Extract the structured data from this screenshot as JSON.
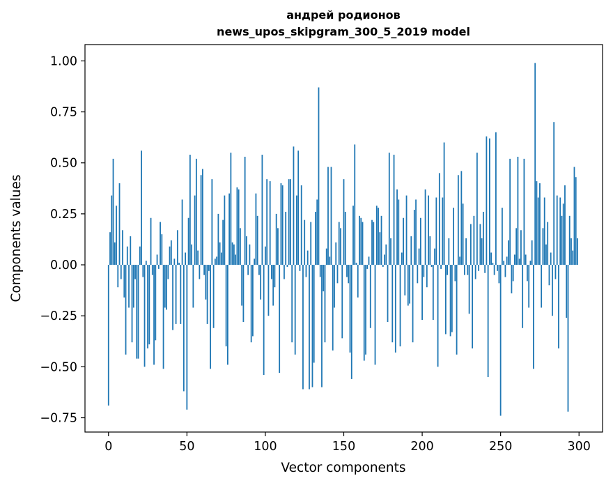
{
  "colors": {
    "bar": "#1f77b4",
    "axis": "#000000",
    "background": "#ffffff"
  },
  "chart_data": {
    "type": "bar",
    "title": "андрей родионов",
    "subtitle": "news_upos_skipgram_300_5_2019 model",
    "xlabel": "Vector components",
    "ylabel": "Components values",
    "xlim": [
      -15,
      315
    ],
    "ylim": [
      -0.82,
      1.08
    ],
    "grid": false,
    "legend": "none",
    "x_ticks": [
      0,
      50,
      100,
      150,
      200,
      250,
      300
    ],
    "y_ticks": [
      -0.75,
      -0.5,
      -0.25,
      0.0,
      0.25,
      0.5,
      0.75,
      1.0
    ],
    "x_tick_labels": [
      "0",
      "50",
      "100",
      "150",
      "200",
      "250",
      "300"
    ],
    "y_tick_labels": [
      "−0.75",
      "−0.50",
      "−0.25",
      "0.00",
      "0.25",
      "0.50",
      "0.75",
      "1.00"
    ],
    "x": [
      0,
      1,
      2,
      3,
      4,
      5,
      6,
      7,
      8,
      9,
      10,
      11,
      12,
      13,
      14,
      15,
      16,
      17,
      18,
      19,
      20,
      21,
      22,
      23,
      24,
      25,
      26,
      27,
      28,
      29,
      30,
      31,
      32,
      33,
      34,
      35,
      36,
      37,
      38,
      39,
      40,
      41,
      42,
      43,
      44,
      45,
      46,
      47,
      48,
      49,
      50,
      51,
      52,
      53,
      54,
      55,
      56,
      57,
      58,
      59,
      60,
      61,
      62,
      63,
      64,
      65,
      66,
      67,
      68,
      69,
      70,
      71,
      72,
      73,
      74,
      75,
      76,
      77,
      78,
      79,
      80,
      81,
      82,
      83,
      84,
      85,
      86,
      87,
      88,
      89,
      90,
      91,
      92,
      93,
      94,
      95,
      96,
      97,
      98,
      99,
      100,
      101,
      102,
      103,
      104,
      105,
      106,
      107,
      108,
      109,
      110,
      111,
      112,
      113,
      114,
      115,
      116,
      117,
      118,
      119,
      120,
      121,
      122,
      123,
      124,
      125,
      126,
      127,
      128,
      129,
      130,
      131,
      132,
      133,
      134,
      135,
      136,
      137,
      138,
      139,
      140,
      141,
      142,
      143,
      144,
      145,
      146,
      147,
      148,
      149,
      150,
      151,
      152,
      153,
      154,
      155,
      156,
      157,
      158,
      159,
      160,
      161,
      162,
      163,
      164,
      165,
      166,
      167,
      168,
      169,
      170,
      171,
      172,
      173,
      174,
      175,
      176,
      177,
      178,
      179,
      180,
      181,
      182,
      183,
      184,
      185,
      186,
      187,
      188,
      189,
      190,
      191,
      192,
      193,
      194,
      195,
      196,
      197,
      198,
      199,
      200,
      201,
      202,
      203,
      204,
      205,
      206,
      207,
      208,
      209,
      210,
      211,
      212,
      213,
      214,
      215,
      216,
      217,
      218,
      219,
      220,
      221,
      222,
      223,
      224,
      225,
      226,
      227,
      228,
      229,
      230,
      231,
      232,
      233,
      234,
      235,
      236,
      237,
      238,
      239,
      240,
      241,
      242,
      243,
      244,
      245,
      246,
      247,
      248,
      249,
      250,
      251,
      252,
      253,
      254,
      255,
      256,
      257,
      258,
      259,
      260,
      261,
      262,
      263,
      264,
      265,
      266,
      267,
      268,
      269,
      270,
      271,
      272,
      273,
      274,
      275,
      276,
      277,
      278,
      279,
      280,
      281,
      282,
      283,
      284,
      285,
      286,
      287,
      288,
      289,
      290,
      291,
      292,
      293,
      294,
      295,
      296,
      297,
      298,
      299
    ],
    "values": [
      -0.69,
      0.16,
      0.34,
      0.52,
      0.11,
      0.29,
      -0.11,
      0.4,
      -0.07,
      0.17,
      -0.16,
      -0.44,
      0.09,
      -0.21,
      0.14,
      -0.38,
      -0.21,
      -0.07,
      -0.46,
      -0.46,
      0.09,
      0.56,
      -0.06,
      -0.5,
      0.02,
      -0.41,
      -0.39,
      0.23,
      -0.05,
      -0.49,
      -0.37,
      0.05,
      -0.02,
      0.21,
      0.15,
      -0.51,
      -0.21,
      -0.22,
      -0.07,
      0.09,
      0.12,
      -0.32,
      0.03,
      -0.29,
      0.17,
      0.01,
      -0.29,
      0.32,
      -0.62,
      0.06,
      -0.71,
      0.23,
      0.54,
      0.1,
      -0.21,
      0.34,
      0.52,
      0.07,
      -0.07,
      0.44,
      0.47,
      -0.05,
      -0.17,
      -0.29,
      -0.03,
      -0.51,
      0.42,
      -0.31,
      0.03,
      0.04,
      0.25,
      0.11,
      0.06,
      0.22,
      0.34,
      -0.4,
      -0.49,
      0.35,
      0.55,
      0.11,
      0.1,
      0.05,
      0.38,
      0.37,
      0.18,
      -0.2,
      -0.28,
      0.53,
      0.14,
      -0.05,
      0.1,
      -0.38,
      -0.35,
      0.03,
      0.35,
      0.24,
      -0.05,
      -0.17,
      0.54,
      -0.54,
      0.09,
      0.42,
      -0.25,
      0.41,
      -0.07,
      -0.2,
      -0.11,
      0.25,
      0.18,
      -0.53,
      0.4,
      0.39,
      -0.07,
      0.26,
      -0.01,
      0.42,
      0.42,
      -0.38,
      0.58,
      -0.44,
      0.34,
      0.56,
      -0.03,
      0.39,
      -0.61,
      0.22,
      -0.06,
      0.07,
      -0.61,
      0.21,
      -0.6,
      -0.48,
      0.26,
      0.32,
      0.87,
      -0.06,
      -0.6,
      -0.13,
      -0.38,
      0.08,
      0.48,
      0.04,
      0.48,
      -0.42,
      -0.21,
      0.11,
      -0.09,
      0.21,
      0.18,
      -0.36,
      0.42,
      0.26,
      -0.06,
      -0.09,
      -0.43,
      -0.56,
      0.29,
      0.59,
      0.01,
      -0.16,
      0.24,
      0.23,
      0.21,
      -0.47,
      -0.44,
      -0.02,
      0.04,
      -0.31,
      0.22,
      0.21,
      -0.49,
      0.29,
      0.28,
      0.16,
      0.24,
      -0.01,
      0.05,
      0.1,
      -0.28,
      0.55,
      0.13,
      -0.38,
      0.54,
      -0.43,
      0.37,
      0.32,
      -0.4,
      0.06,
      0.23,
      -0.15,
      0.34,
      -0.2,
      -0.19,
      0.14,
      -0.38,
      0.27,
      0.32,
      -0.09,
      0.08,
      0.23,
      -0.27,
      -0.06,
      0.37,
      -0.11,
      0.34,
      0.14,
      -0.01,
      -0.27,
      0.08,
      0.33,
      -0.5,
      0.45,
      -0.02,
      0.33,
      0.6,
      -0.34,
      -0.05,
      0.13,
      -0.35,
      -0.33,
      0.28,
      -0.08,
      -0.44,
      0.44,
      0.04,
      0.46,
      0.3,
      -0.05,
      0.13,
      -0.05,
      -0.24,
      0.2,
      -0.41,
      0.24,
      -0.07,
      0.55,
      -0.03,
      0.2,
      0.13,
      0.26,
      -0.04,
      0.63,
      -0.55,
      0.62,
      0.06,
      0.01,
      -0.05,
      0.65,
      -0.03,
      -0.09,
      -0.74,
      0.28,
      0.02,
      -0.06,
      0.04,
      0.12,
      0.52,
      -0.14,
      -0.08,
      0.05,
      0.18,
      0.53,
      0.03,
      0.17,
      -0.31,
      0.52,
      0.05,
      -0.08,
      -0.21,
      0.02,
      0.12,
      -0.51,
      0.99,
      0.41,
      0.33,
      0.4,
      -0.21,
      0.18,
      0.33,
      0.1,
      0.21,
      -0.1,
      0.06,
      -0.25,
      0.7,
      -0.07,
      0.34,
      -0.41,
      0.33,
      0.24,
      0.3,
      0.39,
      -0.26,
      -0.72,
      0.24,
      0.13,
      0.07,
      0.48,
      0.43,
      0.13
    ]
  }
}
